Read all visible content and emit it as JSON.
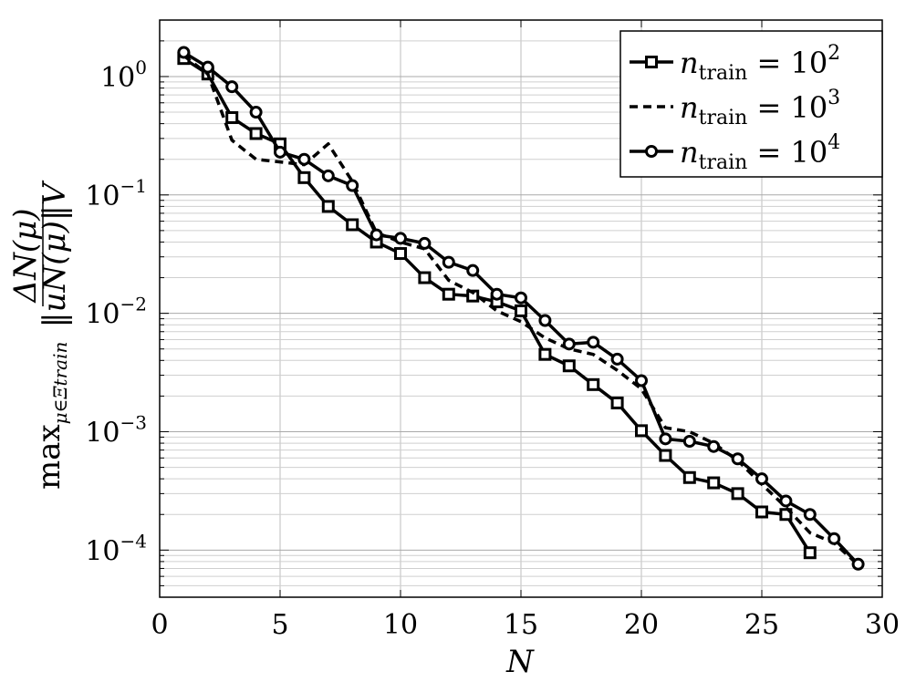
{
  "chart_data": {
    "type": "line",
    "xlabel": "N",
    "ylabel": {
      "prefix": "max",
      "subscript": "μ∈Ξtrain",
      "numerator": "ΔN(μ)",
      "denominator": "‖uN(μ)‖V"
    },
    "xlim": [
      0,
      30
    ],
    "ylim": [
      4e-05,
      3.0
    ],
    "yscale": "log",
    "grid": true,
    "legend_position": "top-right",
    "x_ticks": [
      "0",
      "5",
      "10",
      "15",
      "20",
      "25",
      "30"
    ],
    "y_ticks": [
      {
        "base": "10",
        "exp": "0",
        "value": 1
      },
      {
        "base": "10",
        "exp": "−1",
        "value": 0.1
      },
      {
        "base": "10",
        "exp": "−2",
        "value": 0.01
      },
      {
        "base": "10",
        "exp": "−3",
        "value": 0.001
      },
      {
        "base": "10",
        "exp": "−4",
        "value": 0.0001
      }
    ],
    "series": [
      {
        "name": "n_train = 10^2",
        "legend_base": "n",
        "legend_sub": "train",
        "legend_rhs": "= 10",
        "legend_exp": "2",
        "style": "solid",
        "marker": "square",
        "x": [
          1,
          2,
          3,
          4,
          5,
          6,
          7,
          8,
          9,
          10,
          11,
          12,
          13,
          14,
          15,
          16,
          17,
          18,
          19,
          20,
          21,
          22,
          23,
          24,
          25,
          26,
          27
        ],
        "y": [
          1.42,
          1.05,
          0.45,
          0.33,
          0.27,
          0.14,
          0.08,
          0.056,
          0.04,
          0.032,
          0.02,
          0.0145,
          0.014,
          0.0125,
          0.0105,
          0.0045,
          0.0036,
          0.0025,
          0.00175,
          0.00102,
          0.00063,
          0.00041,
          0.00037,
          0.0003,
          0.00021,
          0.0002,
          9.5e-05
        ]
      },
      {
        "name": "n_train = 10^3",
        "legend_base": "n",
        "legend_sub": "train",
        "legend_rhs": "= 10",
        "legend_exp": "3",
        "style": "dashed",
        "marker": "none",
        "x": [
          1,
          2,
          3,
          4,
          5,
          6,
          7,
          8,
          9,
          10,
          11,
          12,
          13,
          14,
          15,
          16,
          17,
          18,
          19,
          20,
          21,
          22,
          23,
          24,
          25,
          26,
          27,
          28,
          29
        ],
        "y": [
          1.5,
          1.05,
          0.29,
          0.2,
          0.19,
          0.18,
          0.27,
          0.13,
          0.048,
          0.04,
          0.035,
          0.019,
          0.015,
          0.0105,
          0.0085,
          0.0062,
          0.005,
          0.0045,
          0.0033,
          0.0023,
          0.00108,
          0.001,
          0.0008,
          0.00057,
          0.00036,
          0.00023,
          0.00014,
          0.000115,
          7.5e-05
        ]
      },
      {
        "name": "n_train = 10^4",
        "legend_base": "n",
        "legend_sub": "train",
        "legend_rhs": "= 10",
        "legend_exp": "4",
        "style": "solid",
        "marker": "circle",
        "x": [
          1,
          2,
          3,
          4,
          5,
          6,
          7,
          8,
          9,
          10,
          11,
          12,
          13,
          14,
          15,
          16,
          17,
          18,
          19,
          20,
          21,
          22,
          23,
          24,
          25,
          26,
          27,
          28,
          29
        ],
        "y": [
          1.6,
          1.2,
          0.82,
          0.5,
          0.23,
          0.2,
          0.145,
          0.12,
          0.046,
          0.043,
          0.039,
          0.027,
          0.023,
          0.0145,
          0.0135,
          0.0087,
          0.0055,
          0.0057,
          0.0041,
          0.0027,
          0.00087,
          0.00083,
          0.00075,
          0.00059,
          0.0004,
          0.00026,
          0.0002,
          0.000125,
          7.6e-05
        ]
      }
    ]
  }
}
